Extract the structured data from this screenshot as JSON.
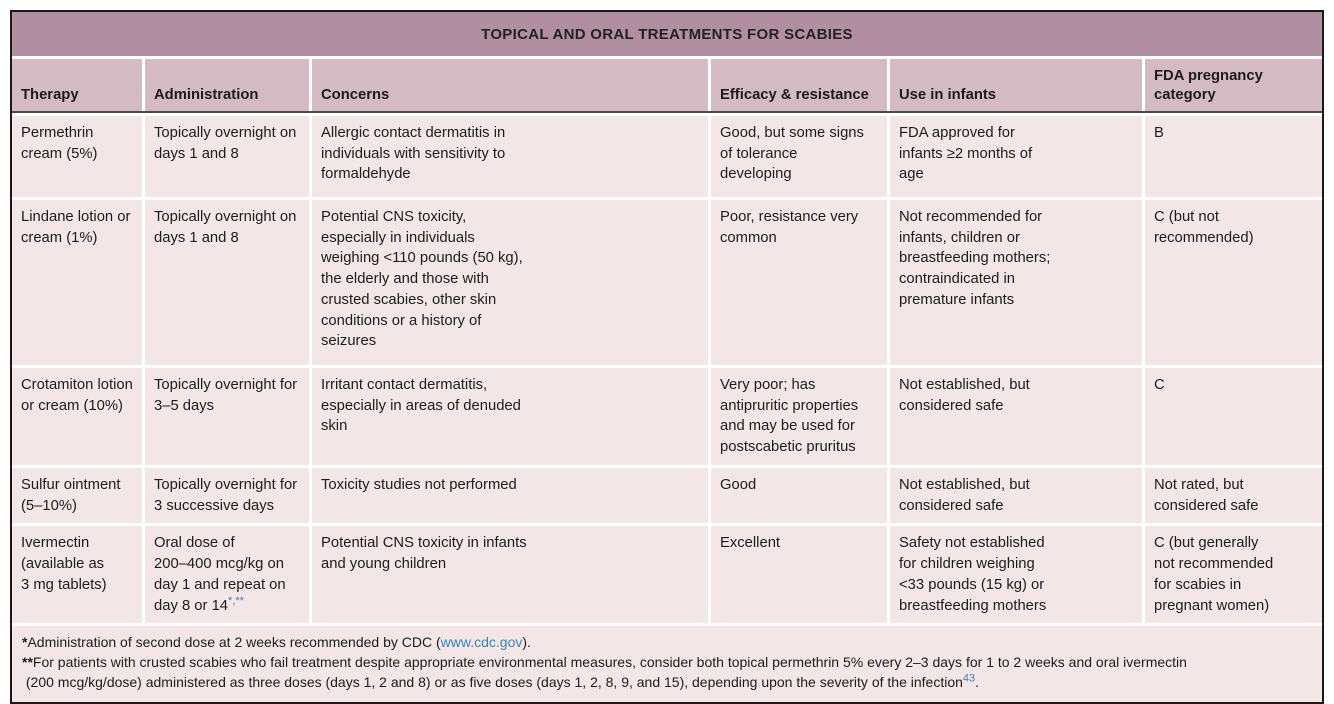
{
  "title": "TOPICAL AND ORAL TREATMENTS FOR SCABIES",
  "columns": [
    "Therapy",
    "Administration",
    "Concerns",
    "Efficacy & resistance",
    "Use in infants",
    "FDA pregnancy\ncategory"
  ],
  "rows": [
    {
      "therapy": "Permethrin\ncream (5%)",
      "administration": "Topically overnight on\ndays 1 and 8",
      "concerns": "Allergic contact dermatitis in\nindividuals with sensitivity to\nformaldehyde",
      "efficacy": "Good, but some signs\nof tolerance\ndeveloping",
      "infants": "FDA approved for\ninfants ≥2 months of\nage",
      "pregnancy": "B"
    },
    {
      "therapy": "Lindane lotion or\ncream (1%)",
      "administration": "Topically overnight on\ndays 1 and 8",
      "concerns": "Potential CNS toxicity,\nespecially in individuals\nweighing <110 pounds (50 kg),\nthe elderly and those with\ncrusted scabies, other skin\nconditions or a history of\nseizures",
      "efficacy": "Poor, resistance very\ncommon",
      "infants": "Not recommended for\ninfants, children or\nbreastfeeding mothers;\ncontraindicated in\npremature infants",
      "pregnancy": "C (but not\nrecommended)"
    },
    {
      "therapy": "Crotamiton lotion\nor cream (10%)",
      "administration": "Topically overnight for\n3–5 days",
      "concerns": "Irritant contact dermatitis,\nespecially in areas of denuded\nskin",
      "efficacy": "Very poor; has\nantipruritic properties\nand may be used for\npostscabetic pruritus",
      "infants": "Not established, but\nconsidered safe",
      "pregnancy": "C"
    },
    {
      "therapy": "Sulfur ointment\n(5–10%)",
      "administration": "Topically overnight for\n3 successive days",
      "concerns": "Toxicity studies not performed",
      "efficacy": "Good",
      "infants": "Not established, but\nconsidered safe",
      "pregnancy": "Not rated, but\nconsidered safe"
    },
    {
      "therapy": "Ivermectin\n(available as\n3 mg tablets)",
      "administration": "Oral dose of\n200–400 mcg/kg on\nday 1 and repeat on\nday 8 or 14",
      "administration_sup": "*,**",
      "concerns": "Potential CNS toxicity in infants\nand young children",
      "efficacy": "Excellent",
      "infants": "Safety not established\nfor children weighing\n<33 pounds (15 kg) or\nbreastfeeding mothers",
      "pregnancy": "C (but generally\nnot recommended\nfor scabies in\npregnant women)"
    }
  ],
  "footnotes": {
    "note1": {
      "marker": "*",
      "text": "Administration of second dose at 2 weeks recommended by CDC (",
      "link": "www.cdc.gov",
      "after": ")."
    },
    "note2": {
      "marker": "**",
      "text": "For patients with crusted scabies who fail treatment despite appropriate environmental measures, consider both topical permethrin 5% every 2–3 days for 1 to 2 weeks and oral ivermectin\n (200 mcg/kg/dose) administered as three doses (days 1, 2 and 8) or as five doses (days 1, 2, 8, 9, and 15), depending upon the severity of the infection",
      "ref": "43",
      "after": "."
    }
  },
  "colors": {
    "title_bar": "#b18fa0",
    "header_bg": "#d4bac3",
    "cell_bg": "#f2e7e6",
    "border": "#191919",
    "link": "#3c7fc0"
  }
}
